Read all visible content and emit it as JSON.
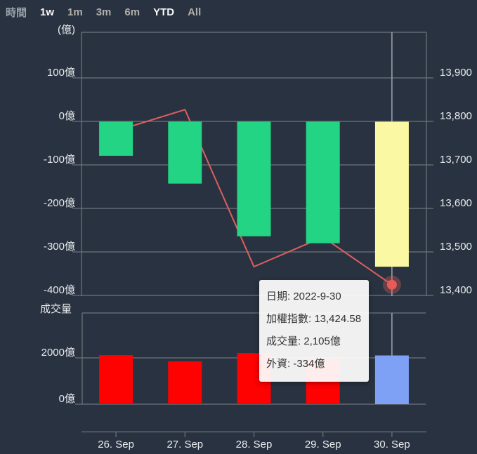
{
  "timebar": {
    "label": "時間",
    "items": [
      {
        "label": "1w",
        "active": true
      },
      {
        "label": "1m",
        "active": false
      },
      {
        "label": "3m",
        "active": false
      },
      {
        "label": "6m",
        "active": false
      },
      {
        "label": "YTD",
        "active": true
      },
      {
        "label": "All",
        "active": false
      }
    ]
  },
  "tooltip": {
    "rows": [
      "日期: 2022-9-30",
      "加權指數: 13,424.58",
      "成交量: 2,105億",
      "外資: -334億"
    ]
  },
  "chart_data": [
    {
      "type": "bar+line",
      "unit_label": "(億)",
      "categories": [
        "26. Sep",
        "27. Sep",
        "28. Sep",
        "29. Sep",
        "30. Sep"
      ],
      "series": [
        {
          "name": "外資",
          "type": "bar",
          "unit": "億",
          "axis": "left",
          "values": [
            -79,
            -143,
            -264,
            -280,
            -334
          ],
          "bar_colors": [
            "#22d483",
            "#22d483",
            "#22d483",
            "#22d483",
            "#fbf8a3"
          ]
        },
        {
          "name": "加權指數",
          "type": "line",
          "axis": "right",
          "values": [
            13778,
            13827,
            13466,
            13534,
            13424.58
          ],
          "color": "#db5f5f"
        }
      ],
      "left_axis_ticks": [
        {
          "label": "100億",
          "value": 100
        },
        {
          "label": "0億",
          "value": 0
        },
        {
          "label": "-100億",
          "value": -100
        },
        {
          "label": "-200億",
          "value": -200
        },
        {
          "label": "-300億",
          "value": -300
        },
        {
          "label": "-400億",
          "value": -400
        }
      ],
      "right_axis_ticks": [
        {
          "label": "13,900",
          "value": 13900
        },
        {
          "label": "13,800",
          "value": 13800
        },
        {
          "label": "13,700",
          "value": 13700
        },
        {
          "label": "13,600",
          "value": 13600
        },
        {
          "label": "13,500",
          "value": 13500
        },
        {
          "label": "13,400",
          "value": 13400
        }
      ],
      "grid": true,
      "highlight_index": 4,
      "crosshair": true
    },
    {
      "type": "bar",
      "title_label": "成交量",
      "name": "成交量",
      "unit": "億",
      "categories": [
        "26. Sep",
        "27. Sep",
        "28. Sep",
        "29. Sep",
        "30. Sep"
      ],
      "values": [
        2120,
        1850,
        2210,
        1950,
        2105
      ],
      "bar_colors": [
        "#fe0101",
        "#fe0101",
        "#fe0101",
        "#fe0101",
        "#7ea1f6"
      ],
      "axis_ticks": [
        {
          "label": "2000億",
          "value": 2000
        },
        {
          "label": "0億",
          "value": 0
        }
      ],
      "grid": true,
      "highlight_index": 4
    }
  ],
  "colors": {
    "background": "#293240",
    "grid": "#6e747c",
    "crosshair": "#a9aeb4",
    "axis_text": "#e9ecef",
    "bar_green": "#22d483",
    "bar_yellow": "#fbf8a3",
    "bar_red": "#fe0101",
    "bar_blue": "#7ea1f6",
    "index_line": "#db5f5f",
    "marker": "#e85a55",
    "marker_halo": "rgba(219,95,95,0.35)",
    "tooltip_bg": "rgba(255,255,255,0.93)",
    "tooltip_text": "#333333"
  }
}
